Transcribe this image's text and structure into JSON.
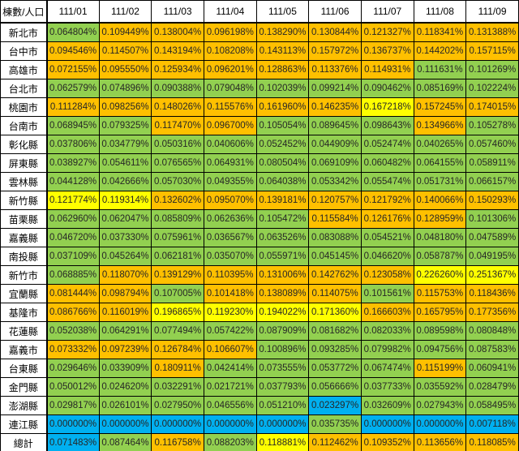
{
  "chart_data": {
    "type": "heatmap",
    "corner_label": "棟數/人口",
    "columns": [
      "111/01",
      "111/02",
      "111/03",
      "111/04",
      "111/05",
      "111/06",
      "111/07",
      "111/08",
      "111/09"
    ],
    "rows": [
      {
        "label": "新北市",
        "values": [
          "0.064804%",
          "0.109449%",
          "0.138004%",
          "0.096198%",
          "0.138290%",
          "0.130844%",
          "0.121327%",
          "0.118341%",
          "0.131388%"
        ],
        "colors": [
          "g",
          "o",
          "o",
          "o",
          "o",
          "o",
          "o",
          "o",
          "o"
        ]
      },
      {
        "label": "台中市",
        "values": [
          "0.094546%",
          "0.114507%",
          "0.143194%",
          "0.108208%",
          "0.143113%",
          "0.157972%",
          "0.136737%",
          "0.144202%",
          "0.157115%"
        ],
        "colors": [
          "o",
          "o",
          "o",
          "o",
          "o",
          "o",
          "o",
          "o",
          "o"
        ]
      },
      {
        "label": "高雄市",
        "values": [
          "0.072155%",
          "0.095550%",
          "0.125934%",
          "0.096201%",
          "0.128863%",
          "0.113376%",
          "0.114931%",
          "0.111631%",
          "0.101269%"
        ],
        "colors": [
          "o",
          "o",
          "o",
          "o",
          "o",
          "o",
          "o",
          "g",
          "g"
        ]
      },
      {
        "label": "台北市",
        "values": [
          "0.062579%",
          "0.074896%",
          "0.090388%",
          "0.079048%",
          "0.102039%",
          "0.099214%",
          "0.090462%",
          "0.085169%",
          "0.102224%"
        ],
        "colors": [
          "g",
          "g",
          "g",
          "g",
          "g",
          "g",
          "g",
          "g",
          "g"
        ]
      },
      {
        "label": "桃園市",
        "values": [
          "0.111284%",
          "0.098256%",
          "0.148026%",
          "0.115576%",
          "0.161960%",
          "0.146235%",
          "0.167218%",
          "0.157245%",
          "0.174015%"
        ],
        "colors": [
          "o",
          "o",
          "o",
          "o",
          "o",
          "o",
          "y",
          "o",
          "o"
        ]
      },
      {
        "label": "台南市",
        "values": [
          "0.068945%",
          "0.079325%",
          "0.117470%",
          "0.096700%",
          "0.105054%",
          "0.089645%",
          "0.098643%",
          "0.134966%",
          "0.105278%"
        ],
        "colors": [
          "g",
          "g",
          "o",
          "o",
          "g",
          "g",
          "g",
          "o",
          "g"
        ]
      },
      {
        "label": "彰化縣",
        "values": [
          "0.037806%",
          "0.034779%",
          "0.050316%",
          "0.040606%",
          "0.052452%",
          "0.044909%",
          "0.052474%",
          "0.040265%",
          "0.057460%"
        ],
        "colors": [
          "g",
          "g",
          "g",
          "g",
          "g",
          "g",
          "g",
          "g",
          "g"
        ]
      },
      {
        "label": "屏東縣",
        "values": [
          "0.038927%",
          "0.054611%",
          "0.076565%",
          "0.064931%",
          "0.080504%",
          "0.069109%",
          "0.060482%",
          "0.064155%",
          "0.058911%"
        ],
        "colors": [
          "g",
          "g",
          "g",
          "g",
          "g",
          "g",
          "g",
          "g",
          "g"
        ]
      },
      {
        "label": "雲林縣",
        "values": [
          "0.044128%",
          "0.042666%",
          "0.057030%",
          "0.049355%",
          "0.064038%",
          "0.053342%",
          "0.055474%",
          "0.051731%",
          "0.066157%"
        ],
        "colors": [
          "g",
          "g",
          "g",
          "g",
          "g",
          "g",
          "g",
          "g",
          "g"
        ]
      },
      {
        "label": "新竹縣",
        "values": [
          "0.121774%",
          "0.119314%",
          "0.132602%",
          "0.095070%",
          "0.139181%",
          "0.120757%",
          "0.121792%",
          "0.140066%",
          "0.150293%"
        ],
        "colors": [
          "y",
          "y",
          "o",
          "o",
          "o",
          "o",
          "o",
          "o",
          "o"
        ]
      },
      {
        "label": "苗栗縣",
        "values": [
          "0.062960%",
          "0.062047%",
          "0.085809%",
          "0.062636%",
          "0.105472%",
          "0.115584%",
          "0.126176%",
          "0.128959%",
          "0.101306%"
        ],
        "colors": [
          "g",
          "g",
          "g",
          "g",
          "g",
          "o",
          "o",
          "o",
          "g"
        ]
      },
      {
        "label": "嘉義縣",
        "values": [
          "0.046720%",
          "0.037330%",
          "0.075961%",
          "0.036567%",
          "0.063526%",
          "0.083088%",
          "0.054521%",
          "0.048180%",
          "0.047589%"
        ],
        "colors": [
          "g",
          "g",
          "g",
          "g",
          "g",
          "g",
          "g",
          "g",
          "g"
        ]
      },
      {
        "label": "南投縣",
        "values": [
          "0.037109%",
          "0.045264%",
          "0.062181%",
          "0.035070%",
          "0.055971%",
          "0.045145%",
          "0.046620%",
          "0.058787%",
          "0.049195%"
        ],
        "colors": [
          "g",
          "g",
          "g",
          "g",
          "g",
          "g",
          "g",
          "g",
          "g"
        ]
      },
      {
        "label": "新竹市",
        "values": [
          "0.068885%",
          "0.118070%",
          "0.139129%",
          "0.110395%",
          "0.131006%",
          "0.142762%",
          "0.123058%",
          "0.226260%",
          "0.251367%"
        ],
        "colors": [
          "g",
          "o",
          "o",
          "o",
          "o",
          "o",
          "o",
          "y",
          "y"
        ]
      },
      {
        "label": "宜蘭縣",
        "values": [
          "0.081444%",
          "0.098794%",
          "0.107005%",
          "0.101418%",
          "0.138089%",
          "0.114075%",
          "0.101561%",
          "0.115753%",
          "0.118436%"
        ],
        "colors": [
          "o",
          "o",
          "g",
          "o",
          "o",
          "o",
          "g",
          "o",
          "o"
        ]
      },
      {
        "label": "基隆市",
        "values": [
          "0.086766%",
          "0.116019%",
          "0.196865%",
          "0.119230%",
          "0.194022%",
          "0.171360%",
          "0.166603%",
          "0.165795%",
          "0.177356%"
        ],
        "colors": [
          "o",
          "o",
          "y",
          "y",
          "y",
          "y",
          "o",
          "o",
          "o"
        ]
      },
      {
        "label": "花蓮縣",
        "values": [
          "0.052038%",
          "0.064291%",
          "0.077494%",
          "0.057422%",
          "0.087909%",
          "0.081682%",
          "0.082033%",
          "0.089598%",
          "0.080848%"
        ],
        "colors": [
          "g",
          "g",
          "g",
          "g",
          "g",
          "g",
          "g",
          "g",
          "g"
        ]
      },
      {
        "label": "嘉義市",
        "values": [
          "0.073332%",
          "0.097239%",
          "0.126784%",
          "0.106607%",
          "0.100896%",
          "0.093285%",
          "0.079982%",
          "0.094756%",
          "0.087583%"
        ],
        "colors": [
          "o",
          "o",
          "o",
          "o",
          "g",
          "g",
          "g",
          "g",
          "g"
        ]
      },
      {
        "label": "台東縣",
        "values": [
          "0.029646%",
          "0.033909%",
          "0.180911%",
          "0.042414%",
          "0.073555%",
          "0.053772%",
          "0.067474%",
          "0.115199%",
          "0.060941%"
        ],
        "colors": [
          "g",
          "g",
          "o",
          "g",
          "g",
          "g",
          "g",
          "o",
          "g"
        ]
      },
      {
        "label": "金門縣",
        "values": [
          "0.050012%",
          "0.024620%",
          "0.032291%",
          "0.021721%",
          "0.037793%",
          "0.056666%",
          "0.037733%",
          "0.035592%",
          "0.028479%"
        ],
        "colors": [
          "g",
          "g",
          "g",
          "g",
          "g",
          "g",
          "g",
          "g",
          "g"
        ]
      },
      {
        "label": "澎湖縣",
        "values": [
          "0.029817%",
          "0.026101%",
          "0.027950%",
          "0.046556%",
          "0.051210%",
          "0.023297%",
          "0.032609%",
          "0.027943%",
          "0.058495%"
        ],
        "colors": [
          "g",
          "g",
          "g",
          "g",
          "g",
          "b",
          "g",
          "g",
          "g"
        ]
      },
      {
        "label": "連江縣",
        "values": [
          "0.000000%",
          "0.000000%",
          "0.000000%",
          "0.000000%",
          "0.000000%",
          "0.035735%",
          "0.000000%",
          "0.000000%",
          "0.007118%"
        ],
        "colors": [
          "b",
          "b",
          "b",
          "b",
          "b",
          "g",
          "b",
          "b",
          "b"
        ]
      },
      {
        "label": "總計",
        "values": [
          "0.071483%",
          "0.087464%",
          "0.116758%",
          "0.088203%",
          "0.118881%",
          "0.112462%",
          "0.109352%",
          "0.113656%",
          "0.118085%"
        ],
        "colors": [
          "b",
          "g",
          "o",
          "g",
          "y",
          "o",
          "o",
          "o",
          "o"
        ]
      }
    ],
    "color_key": {
      "g": "#92D050",
      "o": "#FFC000",
      "y": "#FFFF00",
      "b": "#00B0F0"
    },
    "header_bg": "#FFFFFF",
    "border_color": "#000000",
    "text_color": "#262626",
    "legend_position": "none",
    "grid": true
  }
}
